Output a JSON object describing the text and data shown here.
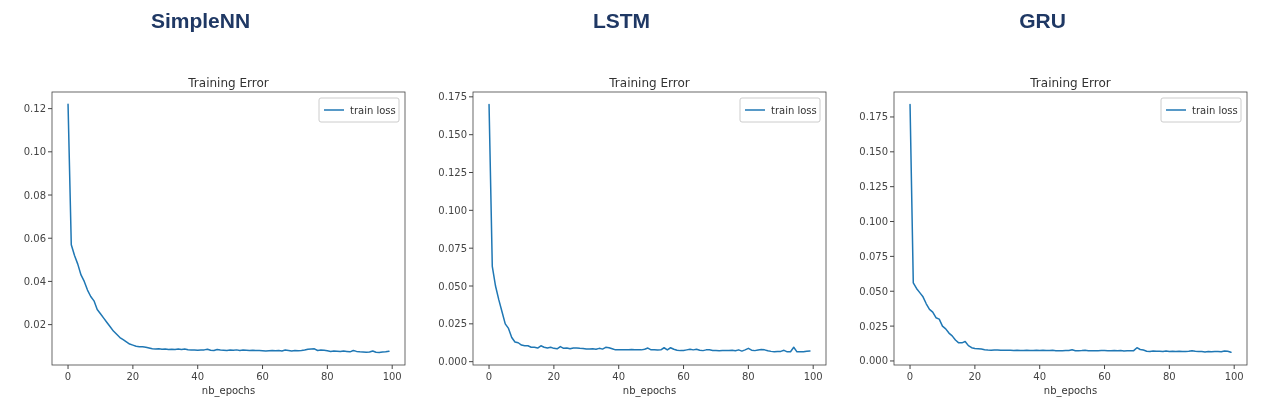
{
  "chart_data": [
    {
      "type": "line",
      "title": "SimpleNN",
      "subtitle": "Training Error",
      "xlabel": "nb_epochs",
      "x": [
        0,
        1,
        2,
        3,
        4,
        5,
        6,
        7,
        8,
        9,
        10,
        11,
        12,
        13,
        14,
        15,
        16,
        17,
        18,
        19,
        20,
        21,
        22,
        23,
        24,
        25,
        26,
        27,
        28,
        29,
        30,
        31,
        32,
        33,
        34,
        35,
        36,
        37,
        38,
        39,
        40,
        41,
        42,
        43,
        44,
        45,
        46,
        47,
        48,
        49,
        50,
        51,
        52,
        53,
        54,
        55,
        56,
        57,
        58,
        59,
        60,
        61,
        62,
        63,
        64,
        65,
        66,
        67,
        68,
        69,
        70,
        71,
        72,
        73,
        74,
        75,
        76,
        77,
        78,
        79,
        80,
        81,
        82,
        83,
        84,
        85,
        86,
        87,
        88,
        89,
        90,
        91,
        92,
        93,
        94,
        95,
        96,
        97,
        98,
        99
      ],
      "legend": "top right",
      "xlim": [
        -4.95,
        103.95
      ],
      "xticks": [
        0,
        20,
        40,
        60,
        80,
        100
      ],
      "ylim": [
        0.0013,
        0.1277
      ],
      "yticks": [
        {
          "value": 0.02,
          "label": "0.02"
        },
        {
          "value": 0.04,
          "label": "0.04"
        },
        {
          "value": 0.06,
          "label": "0.06"
        },
        {
          "value": 0.08,
          "label": "0.08"
        },
        {
          "value": 0.1,
          "label": "0.10"
        },
        {
          "value": 0.12,
          "label": "0.12"
        }
      ],
      "series": [
        {
          "name": "train loss",
          "color": "#1f77b4",
          "values": [
            0.122,
            0.057,
            0.052,
            0.048,
            0.043,
            0.04,
            0.036,
            0.033,
            0.031,
            0.027,
            0.025,
            0.023,
            0.021,
            0.019,
            0.017,
            0.0155,
            0.014,
            0.013,
            0.012,
            0.011,
            0.0105,
            0.01,
            0.0098,
            0.0097,
            0.0095,
            0.0092,
            0.0088,
            0.0087,
            0.0088,
            0.0086,
            0.0087,
            0.0085,
            0.0086,
            0.0085,
            0.0087,
            0.0085,
            0.0087,
            0.0084,
            0.0083,
            0.0082,
            0.0081,
            0.0082,
            0.0083,
            0.0086,
            0.0081,
            0.008,
            0.0085,
            0.0082,
            0.0081,
            0.008,
            0.0082,
            0.0081,
            0.0083,
            0.008,
            0.0082,
            0.0081,
            0.008,
            0.0081,
            0.008,
            0.008,
            0.0079,
            0.0078,
            0.0079,
            0.008,
            0.0079,
            0.008,
            0.0078,
            0.0082,
            0.008,
            0.0078,
            0.008,
            0.0079,
            0.008,
            0.0082,
            0.0086,
            0.0087,
            0.0088,
            0.008,
            0.0082,
            0.0081,
            0.0079,
            0.0076,
            0.0078,
            0.0077,
            0.0075,
            0.0078,
            0.0076,
            0.0074,
            0.008,
            0.0076,
            0.0074,
            0.0073,
            0.0072,
            0.0073,
            0.0078,
            0.0072,
            0.0071,
            0.0073,
            0.0074,
            0.0077
          ]
        }
      ]
    },
    {
      "type": "line",
      "title": "LSTM",
      "subtitle": "Training Error",
      "xlabel": "nb_epochs",
      "x": [
        0,
        1,
        2,
        3,
        4,
        5,
        6,
        7,
        8,
        9,
        10,
        11,
        12,
        13,
        14,
        15,
        16,
        17,
        18,
        19,
        20,
        21,
        22,
        23,
        24,
        25,
        26,
        27,
        28,
        29,
        30,
        31,
        32,
        33,
        34,
        35,
        36,
        37,
        38,
        39,
        40,
        41,
        42,
        43,
        44,
        45,
        46,
        47,
        48,
        49,
        50,
        51,
        52,
        53,
        54,
        55,
        56,
        57,
        58,
        59,
        60,
        61,
        62,
        63,
        64,
        65,
        66,
        67,
        68,
        69,
        70,
        71,
        72,
        73,
        74,
        75,
        76,
        77,
        78,
        79,
        80,
        81,
        82,
        83,
        84,
        85,
        86,
        87,
        88,
        89,
        90,
        91,
        92,
        93,
        94,
        95,
        96,
        97,
        98,
        99
      ],
      "legend": "top right",
      "xlim": [
        -4.95,
        103.95
      ],
      "xticks": [
        0,
        20,
        40,
        60,
        80,
        100
      ],
      "ylim": [
        -0.0022,
        0.1782
      ],
      "yticks": [
        {
          "value": 0,
          "label": "0.000"
        },
        {
          "value": 0.025,
          "label": "0.025"
        },
        {
          "value": 0.05,
          "label": "0.050"
        },
        {
          "value": 0.075,
          "label": "0.075"
        },
        {
          "value": 0.1,
          "label": "0.100"
        },
        {
          "value": 0.125,
          "label": "0.125"
        },
        {
          "value": 0.15,
          "label": "0.150"
        },
        {
          "value": 0.175,
          "label": "0.175"
        }
      ],
      "series": [
        {
          "name": "train loss",
          "color": "#1f77b4",
          "values": [
            0.17,
            0.063,
            0.05,
            0.041,
            0.033,
            0.025,
            0.022,
            0.016,
            0.013,
            0.0125,
            0.011,
            0.0105,
            0.0105,
            0.0095,
            0.0095,
            0.009,
            0.0105,
            0.0095,
            0.009,
            0.0095,
            0.0088,
            0.0085,
            0.01,
            0.0088,
            0.009,
            0.0085,
            0.009,
            0.009,
            0.0088,
            0.0087,
            0.0083,
            0.0083,
            0.0085,
            0.0082,
            0.0088,
            0.0083,
            0.0095,
            0.0092,
            0.0085,
            0.0078,
            0.0078,
            0.0078,
            0.0079,
            0.0079,
            0.008,
            0.0079,
            0.0078,
            0.0078,
            0.0082,
            0.009,
            0.0078,
            0.0078,
            0.0077,
            0.0078,
            0.0092,
            0.0078,
            0.0092,
            0.0082,
            0.0075,
            0.0073,
            0.0074,
            0.0078,
            0.0082,
            0.0078,
            0.0082,
            0.0075,
            0.0073,
            0.0078,
            0.0079,
            0.0074,
            0.0073,
            0.0072,
            0.0073,
            0.0073,
            0.0074,
            0.0075,
            0.0072,
            0.0078,
            0.007,
            0.0078,
            0.0088,
            0.0076,
            0.0073,
            0.0077,
            0.008,
            0.0078,
            0.0072,
            0.0068,
            0.0065,
            0.0067,
            0.0068,
            0.0075,
            0.0065,
            0.0066,
            0.0095,
            0.0065,
            0.0066,
            0.0066,
            0.0069,
            0.007
          ]
        }
      ]
    },
    {
      "type": "line",
      "title": "GRU",
      "subtitle": "Training Error",
      "xlabel": "nb_epochs",
      "x": [
        0,
        1,
        2,
        3,
        4,
        5,
        6,
        7,
        8,
        9,
        10,
        11,
        12,
        13,
        14,
        15,
        16,
        17,
        18,
        19,
        20,
        21,
        22,
        23,
        24,
        25,
        26,
        27,
        28,
        29,
        30,
        31,
        32,
        33,
        34,
        35,
        36,
        37,
        38,
        39,
        40,
        41,
        42,
        43,
        44,
        45,
        46,
        47,
        48,
        49,
        50,
        51,
        52,
        53,
        54,
        55,
        56,
        57,
        58,
        59,
        60,
        61,
        62,
        63,
        64,
        65,
        66,
        67,
        68,
        69,
        70,
        71,
        72,
        73,
        74,
        75,
        76,
        77,
        78,
        79,
        80,
        81,
        82,
        83,
        84,
        85,
        86,
        87,
        88,
        89,
        90,
        91,
        92,
        93,
        94,
        95,
        96,
        97,
        98,
        99
      ],
      "legend": "top right",
      "xlim": [
        -4.95,
        103.95
      ],
      "xticks": [
        0,
        20,
        40,
        60,
        80,
        100
      ],
      "ylim": [
        -0.0029,
        0.1929
      ],
      "yticks": [
        {
          "value": 0,
          "label": "0.000"
        },
        {
          "value": 0.025,
          "label": "0.025"
        },
        {
          "value": 0.05,
          "label": "0.050"
        },
        {
          "value": 0.075,
          "label": "0.075"
        },
        {
          "value": 0.1,
          "label": "0.100"
        },
        {
          "value": 0.125,
          "label": "0.125"
        },
        {
          "value": 0.15,
          "label": "0.150"
        },
        {
          "value": 0.175,
          "label": "0.175"
        }
      ],
      "series": [
        {
          "name": "train loss",
          "color": "#1f77b4",
          "values": [
            0.184,
            0.056,
            0.052,
            0.049,
            0.046,
            0.041,
            0.037,
            0.035,
            0.031,
            0.03,
            0.025,
            0.023,
            0.02,
            0.018,
            0.015,
            0.013,
            0.013,
            0.014,
            0.011,
            0.0095,
            0.009,
            0.0088,
            0.0085,
            0.008,
            0.0078,
            0.0077,
            0.0079,
            0.0078,
            0.0077,
            0.0077,
            0.0076,
            0.0076,
            0.0075,
            0.0076,
            0.0075,
            0.0075,
            0.0076,
            0.0075,
            0.0075,
            0.0076,
            0.0075,
            0.0076,
            0.0075,
            0.0075,
            0.0076,
            0.0074,
            0.0074,
            0.0074,
            0.0075,
            0.0075,
            0.008,
            0.0073,
            0.0074,
            0.0075,
            0.0077,
            0.0074,
            0.0073,
            0.0074,
            0.0074,
            0.0075,
            0.0075,
            0.0074,
            0.0074,
            0.0075,
            0.0074,
            0.0075,
            0.0072,
            0.0074,
            0.0074,
            0.0074,
            0.0095,
            0.0082,
            0.0078,
            0.007,
            0.0068,
            0.0072,
            0.007,
            0.0069,
            0.0068,
            0.0072,
            0.0068,
            0.0069,
            0.0068,
            0.007,
            0.0067,
            0.0068,
            0.0069,
            0.0073,
            0.007,
            0.0068,
            0.0067,
            0.0065,
            0.0067,
            0.0066,
            0.0067,
            0.0067,
            0.0066,
            0.0072,
            0.0069,
            0.0062
          ]
        }
      ]
    }
  ]
}
